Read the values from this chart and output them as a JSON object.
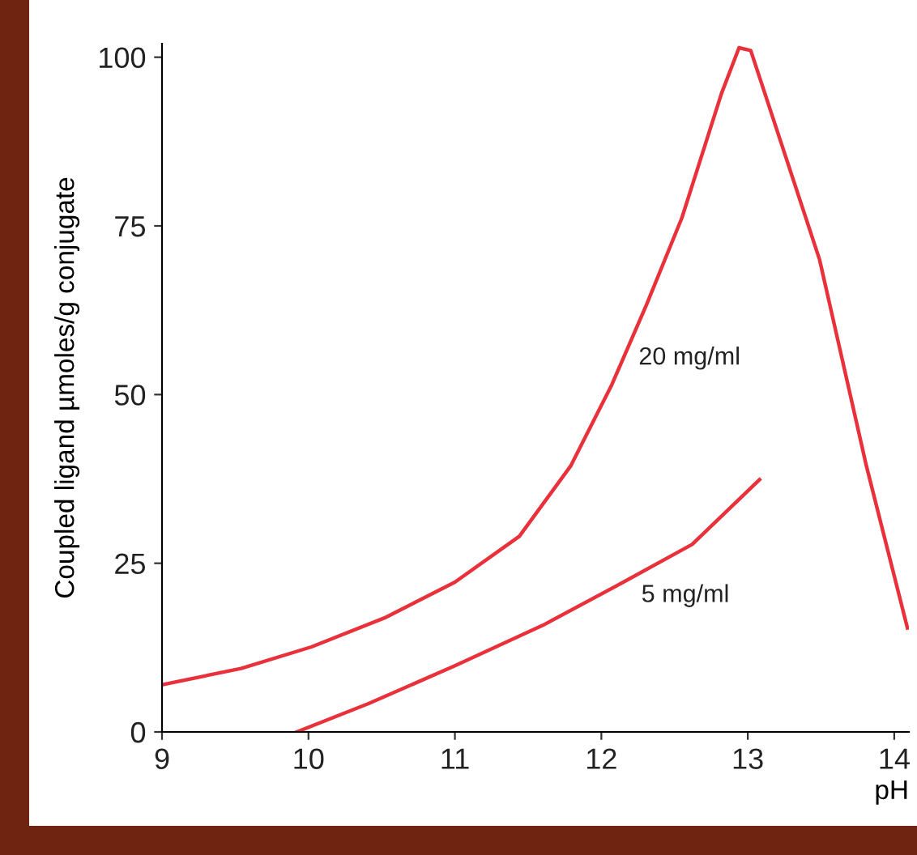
{
  "chart_data": {
    "type": "line",
    "xlabel": "pH",
    "ylabel": "Coupled ligand µmoles/g conjugate",
    "xlim": [
      9,
      14.1
    ],
    "ylim": [
      0,
      102
    ],
    "xticks": [
      9,
      10,
      11,
      12,
      13,
      14
    ],
    "yticks": [
      0,
      25,
      50,
      75,
      100
    ],
    "marker": "none",
    "line_style": "solid",
    "series": [
      {
        "name": "20 mg/ml",
        "color": "#e8313a",
        "x": [
          9,
          9.54,
          10.02,
          10.53,
          11.0,
          11.44,
          11.79,
          12.07,
          12.31,
          12.55,
          12.82,
          12.94,
          13.02,
          13.49,
          13.81,
          14.09
        ],
        "values": [
          7.0,
          9.4,
          12.6,
          17,
          22.2,
          29,
          39.4,
          51.4,
          63.4,
          76.2,
          94.6,
          101.4,
          101,
          70,
          39.4,
          15.4
        ]
      },
      {
        "name": "5 mg/ml",
        "color": "#e8313a",
        "x": [
          9.92,
          10.41,
          11.0,
          11.6,
          12.15,
          12.62,
          13.08
        ],
        "values": [
          0,
          4.2,
          9.8,
          15.8,
          22.2,
          27.8,
          37.4
        ]
      }
    ]
  }
}
